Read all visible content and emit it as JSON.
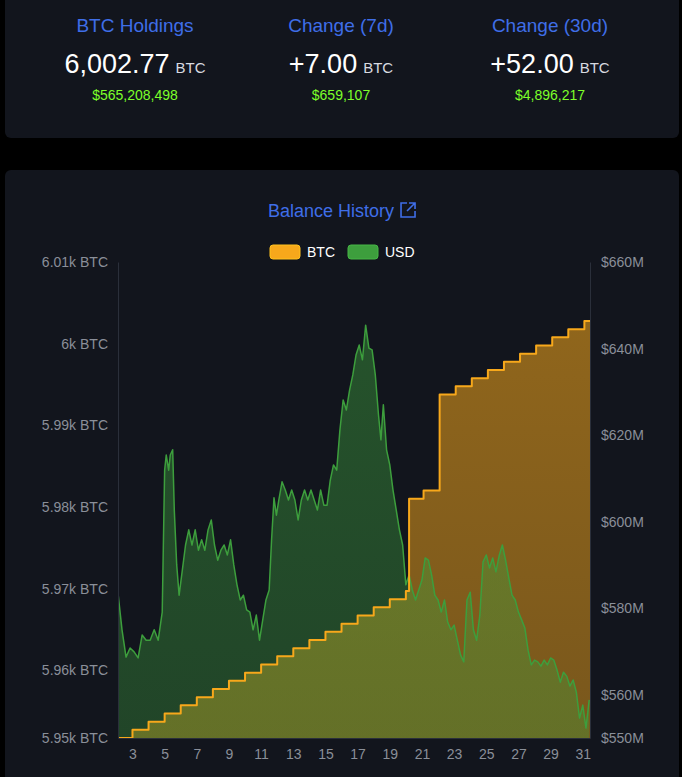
{
  "header": {
    "stats": [
      {
        "label": "BTC Holdings",
        "value": "6,002.77",
        "unit": "BTC",
        "usd": "$565,208,498"
      },
      {
        "label": "Change (7d)",
        "value": "+7.00",
        "unit": "BTC",
        "usd": "$659,107"
      },
      {
        "label": "Change (30d)",
        "value": "+52.00",
        "unit": "BTC",
        "usd": "$4,896,217"
      }
    ]
  },
  "chart_data": {
    "type": "line",
    "title": "Balance History",
    "legend": "top",
    "grid": false,
    "xlim": [
      2.1,
      31.45
    ],
    "xticks": [
      3,
      5,
      7,
      9,
      11,
      13,
      15,
      17,
      19,
      21,
      23,
      25,
      27,
      29,
      31
    ],
    "ylim": [
      5951.7,
      6010
    ],
    "yticks": [
      {
        "value": 5951.7,
        "label": "5.95k BTC"
      },
      {
        "value": 5960,
        "label": "5.96k BTC"
      },
      {
        "value": 5970,
        "label": "5.97k BTC"
      },
      {
        "value": 5980,
        "label": "5.98k BTC"
      },
      {
        "value": 5990,
        "label": "5.99k BTC"
      },
      {
        "value": 6000,
        "label": "6k BTC"
      },
      {
        "value": 6010,
        "label": "6.01k BTC"
      }
    ],
    "y2lim": [
      550,
      660
    ],
    "y2ticks": [
      {
        "value": 550,
        "label": "$550M"
      },
      {
        "value": 560,
        "label": "$560M"
      },
      {
        "value": 580,
        "label": "$580M"
      },
      {
        "value": 600,
        "label": "$600M"
      },
      {
        "value": 620,
        "label": "$620M"
      },
      {
        "value": 640,
        "label": "$640M"
      },
      {
        "value": 660,
        "label": "$660M"
      }
    ],
    "series": [
      {
        "name": "BTC",
        "color": "#f7a81b",
        "type": "area",
        "line_style": "step",
        "x": [
          2.1,
          3,
          4,
          5,
          6,
          7,
          8,
          9,
          10,
          11,
          12,
          13,
          14,
          15,
          16,
          17,
          18,
          19,
          20,
          20.2,
          21.1,
          22.1,
          23.1,
          24.1,
          25.1,
          26.1,
          27.1,
          28.1,
          29.1,
          30.1,
          31.1,
          31.45
        ],
        "values": [
          5951.7,
          5952.7,
          5953.7,
          5954.7,
          5955.7,
          5956.7,
          5957.7,
          5958.7,
          5959.7,
          5960.7,
          5961.7,
          5962.7,
          5963.7,
          5964.7,
          5965.7,
          5966.7,
          5967.7,
          5968.7,
          5969.7,
          5981.0,
          5982.0,
          5993.77,
          5994.77,
          5995.77,
          5996.77,
          5997.77,
          5998.77,
          5999.77,
          6000.77,
          6001.77,
          6002.77,
          6002.77
        ]
      },
      {
        "name": "USD",
        "color": "#3d9e3d",
        "type": "area",
        "line_style": "solid",
        "axis": "y2",
        "x": [
          2.1,
          2.35,
          2.6,
          2.85,
          3.1,
          3.35,
          3.6,
          3.85,
          4.1,
          4.35,
          4.6,
          4.85,
          5.0,
          5.1,
          5.25,
          5.35,
          5.5,
          5.6,
          5.75,
          5.9,
          6.1,
          6.3,
          6.5,
          6.7,
          6.9,
          7.1,
          7.3,
          7.5,
          7.7,
          7.9,
          8.1,
          8.3,
          8.5,
          8.7,
          8.9,
          9.1,
          9.3,
          9.5,
          9.7,
          9.9,
          10.1,
          10.3,
          10.5,
          10.7,
          10.9,
          11.1,
          11.3,
          11.5,
          11.65,
          11.8,
          11.95,
          12.1,
          12.3,
          12.5,
          12.7,
          12.9,
          13.1,
          13.3,
          13.5,
          13.7,
          13.9,
          14.1,
          14.3,
          14.5,
          14.7,
          14.9,
          15.1,
          15.3,
          15.5,
          15.7,
          15.9,
          16.1,
          16.3,
          16.5,
          16.7,
          16.9,
          17.1,
          17.3,
          17.5,
          17.7,
          17.9,
          18.1,
          18.3,
          18.45,
          18.6,
          18.8,
          19.0,
          19.2,
          19.4,
          19.6,
          19.8,
          20.0,
          20.2,
          20.4,
          20.6,
          20.8,
          21.0,
          21.2,
          21.4,
          21.6,
          21.8,
          22.0,
          22.2,
          22.4,
          22.6,
          22.8,
          23.0,
          23.2,
          23.4,
          23.6,
          23.8,
          24.0,
          24.2,
          24.4,
          24.6,
          24.8,
          25.0,
          25.2,
          25.4,
          25.6,
          25.8,
          26.0,
          26.2,
          26.4,
          26.6,
          26.8,
          27.0,
          27.2,
          27.4,
          27.6,
          27.8,
          28.0,
          28.2,
          28.4,
          28.6,
          28.8,
          29.0,
          29.2,
          29.4,
          29.6,
          29.8,
          30.0,
          30.2,
          30.4,
          30.6,
          30.8,
          31.0,
          31.2,
          31.4
        ],
        "values": [
          583.5,
          575.0,
          568.7,
          570.8,
          569.9,
          568.5,
          573.8,
          572.6,
          572.6,
          575.0,
          572.6,
          579.1,
          611.9,
          615.4,
          611.9,
          615.4,
          616.6,
          602.7,
          590.0,
          583.0,
          588.8,
          594.6,
          598.1,
          594.6,
          598.1,
          593.4,
          595.8,
          593.4,
          598.1,
          600.4,
          594.6,
          591.1,
          593.4,
          594.6,
          592.3,
          595.8,
          590.0,
          585.4,
          581.9,
          583.0,
          579.6,
          579.1,
          575.0,
          578.4,
          572.6,
          577.3,
          581.9,
          584.2,
          595.8,
          605.5,
          601.5,
          605.0,
          609.2,
          607.3,
          605.0,
          607.3,
          605.0,
          600.4,
          605.0,
          607.3,
          605.0,
          607.3,
          605.0,
          602.7,
          607.3,
          603.8,
          603.8,
          609.6,
          613.1,
          611.9,
          621.2,
          628.1,
          625.8,
          630.4,
          633.9,
          638.5,
          640.8,
          637.4,
          645.4,
          640.1,
          639.7,
          633.9,
          624.6,
          618.9,
          627.0,
          616.6,
          613.1,
          607.3,
          602.7,
          598.1,
          594.6,
          585.4,
          587.7,
          584.2,
          581.9,
          584.2,
          586.5,
          591.6,
          591.1,
          587.7,
          583.0,
          581.9,
          579.1,
          581.9,
          576.8,
          575.0,
          576.1,
          572.6,
          569.2,
          567.6,
          581.9,
          583.7,
          575.0,
          572.6,
          578.4,
          590.7,
          592.3,
          589.3,
          591.6,
          588.4,
          592.1,
          594.6,
          591.1,
          587.0,
          583.0,
          581.9,
          579.1,
          577.3,
          575.4,
          570.3,
          566.9,
          568.0,
          567.6,
          566.6,
          568.0,
          566.9,
          568.5,
          568.0,
          565.7,
          562.9,
          565.2,
          564.3,
          562.0,
          563.4,
          560.6,
          554.6,
          557.6,
          552.3,
          558.8
        ]
      }
    ]
  }
}
